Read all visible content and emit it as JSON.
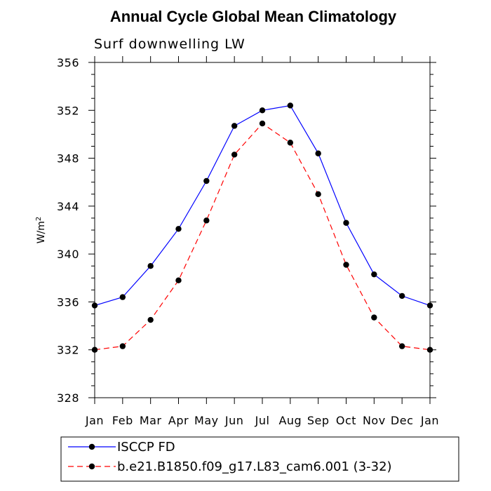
{
  "chart_data": {
    "type": "line",
    "title": "Annual Cycle Global Mean Climatology",
    "subtitle": "Surf downwelling LW",
    "ylabel": "W/m",
    "ylabel_sup": "2",
    "xlabel": "",
    "categories": [
      "Jan",
      "Feb",
      "Mar",
      "Apr",
      "May",
      "Jun",
      "Jul",
      "Aug",
      "Sep",
      "Oct",
      "Nov",
      "Dec",
      "Jan"
    ],
    "ylim": [
      328,
      356
    ],
    "yticks": [
      328,
      332,
      336,
      340,
      344,
      348,
      352,
      356
    ],
    "yticklabels": [
      "328",
      "332",
      "336",
      "340",
      "344",
      "348",
      "352",
      "356"
    ],
    "grid": false,
    "legend_placement": "bottom",
    "series": [
      {
        "name": "ISCCP FD",
        "color": "#0000ff",
        "dash": "solid",
        "values": [
          335.7,
          336.4,
          339.0,
          342.1,
          346.1,
          350.7,
          352.0,
          352.4,
          348.4,
          342.6,
          338.3,
          336.5,
          335.7
        ]
      },
      {
        "name": "b.e21.B1850.f09_g17.L83_cam6.001 (3-32)",
        "color": "#ff0000",
        "dash": "dashed",
        "values": [
          332.0,
          332.3,
          334.5,
          337.8,
          342.8,
          348.3,
          350.9,
          349.3,
          345.0,
          339.1,
          334.7,
          332.3,
          332.0
        ]
      }
    ]
  }
}
